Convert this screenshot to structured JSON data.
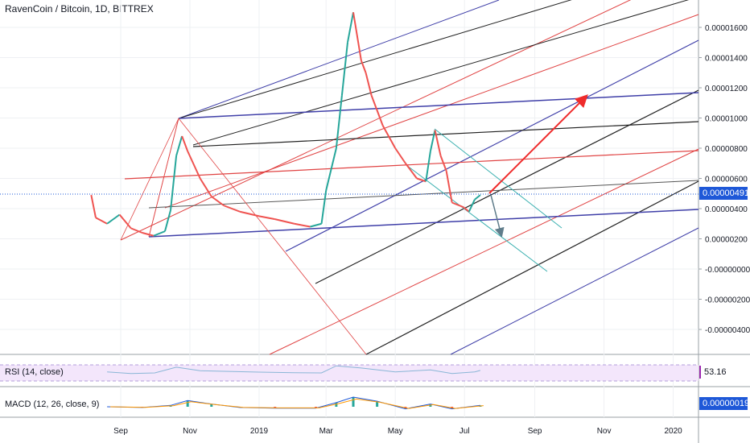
{
  "header": {
    "title": "RavenCoin / Bitcoin, 1D, BITTREX"
  },
  "colors": {
    "candle_up": "#26a69a",
    "candle_down": "#ef5350",
    "fork_blue": "#3f3fa8",
    "fork_red": "#e04343",
    "fork_dark": "#222222",
    "fork_gray": "#555555",
    "trend_teal": "#3bb0b0",
    "arrow_red": "#ef2b2b",
    "arrow_gray": "#607d8b",
    "price_badge": "#1e58d8",
    "rsi": "#8ab6d6",
    "rsi_band": "#f3e6fb",
    "macd_badge": "#1e58d8",
    "signal": "#ff9800"
  },
  "indicators": {
    "rsi": {
      "label": "RSI (14, close)",
      "value": "53.16"
    },
    "macd": {
      "label": "MACD (12, 26, close, 9)",
      "value": "0.00000019"
    }
  },
  "chart_data": {
    "type": "line",
    "title": "RavenCoin / Bitcoin, 1D, BITTREX",
    "current_price": "0.00000491",
    "y_ticks": [
      "0.00001600",
      "0.00001400",
      "0.00001200",
      "0.00001000",
      "0.00000800",
      "0.00000600",
      "0.00000400",
      "0.00000200",
      "-0.00000000",
      "-0.00000200",
      "-0.00000400"
    ],
    "x_ticks": [
      "Sep",
      "Nov",
      "2019",
      "Mar",
      "May",
      "Jul",
      "Sep",
      "Nov",
      "2020"
    ],
    "ylim": [
      -5.05e-06,
      1.74e-05
    ],
    "series": [
      {
        "x": [
          "2018-08-06",
          "2018-08-10",
          "2018-08-20",
          "2018-08-31",
          "2018-09-10",
          "2018-09-20",
          "2018-09-30",
          "2018-10-10",
          "2018-10-15",
          "2018-10-20",
          "2018-10-25",
          "2018-10-30",
          "2018-11-10",
          "2018-11-20",
          "2018-12-01",
          "2018-12-15",
          "2019-01-01",
          "2019-01-15",
          "2019-02-01",
          "2019-02-15",
          "2019-02-25",
          "2019-03-01",
          "2019-03-10",
          "2019-03-15",
          "2019-03-20",
          "2019-03-25",
          "2019-04-01",
          "2019-04-05",
          "2019-04-10",
          "2019-04-20",
          "2019-05-01",
          "2019-05-10",
          "2019-05-20",
          "2019-05-28",
          "2019-06-01",
          "2019-06-05",
          "2019-06-10",
          "2019-06-15",
          "2019-06-20",
          "2019-06-30",
          "2019-07-05",
          "2019-07-10",
          "2019-07-15"
        ],
        "y": [
          4.9e-06,
          3.4e-06,
          3e-06,
          3.6e-06,
          2.7e-06,
          2.4e-06,
          2.2e-06,
          2.5e-06,
          3.9e-06,
          7.5e-06,
          8.8e-06,
          7.8e-06,
          6e-06,
          4.8e-06,
          4.2e-06,
          3.8e-06,
          3.5e-06,
          3.3e-06,
          3e-06,
          2.8e-06,
          3e-06,
          5.2e-06,
          8e-06,
          1.15e-05,
          1.5e-05,
          1.7e-05,
          1.38e-05,
          1.3e-05,
          1.15e-05,
          9.5e-06,
          8e-06,
          7e-06,
          6e-06,
          5.8e-06,
          7.8e-06,
          9.2e-06,
          7.5e-06,
          6.5e-06,
          4.4e-06,
          4.1e-06,
          3.8e-06,
          4.6e-06,
          4.9e-06
        ]
      }
    ],
    "rsi": {
      "ylim": [
        0,
        100
      ],
      "x": [
        "2018-08-20",
        "2018-09-10",
        "2018-10-01",
        "2018-10-20",
        "2018-11-10",
        "2018-12-01",
        "2019-01-01",
        "2019-02-01",
        "2019-02-25",
        "2019-03-10",
        "2019-04-01",
        "2019-05-01",
        "2019-06-01",
        "2019-06-20",
        "2019-07-10",
        "2019-07-15"
      ],
      "y": [
        48,
        42,
        44,
        65,
        52,
        50,
        47,
        45,
        44,
        70,
        62,
        48,
        55,
        42,
        48,
        53.16
      ]
    },
    "macd": {
      "x": [
        "2018-08-20",
        "2018-09-20",
        "2018-10-15",
        "2018-10-30",
        "2018-11-20",
        "2018-12-15",
        "2019-01-15",
        "2019-02-20",
        "2019-03-10",
        "2019-03-25",
        "2019-04-15",
        "2019-05-10",
        "2019-06-01",
        "2019-06-20",
        "2019-07-15"
      ],
      "y": [
        0.0,
        -1e-07,
        2e-07,
        9e-07,
        4e-07,
        -1e-07,
        -2e-07,
        -2e-07,
        6e-07,
        1.4e-06,
        8e-07,
        -3e-07,
        4e-07,
        -3e-07,
        2e-07
      ]
    }
  }
}
